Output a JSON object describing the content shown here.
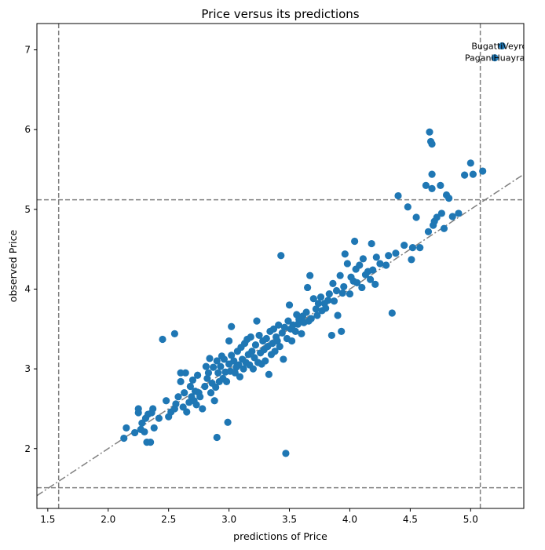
{
  "chart_data": {
    "type": "scatter",
    "title": "Price versus its predictions",
    "xlabel": "predictions of Price",
    "ylabel": "observed Price",
    "xlim": [
      1.41,
      5.44
    ],
    "ylim": [
      1.25,
      7.33
    ],
    "xticks": [
      "1.5",
      "2.0",
      "2.5",
      "3.0",
      "3.5",
      "4.0",
      "4.5",
      "5.0"
    ],
    "yticks": [
      "2",
      "3",
      "4",
      "5",
      "6",
      "7"
    ],
    "grid": false,
    "point_color": "#1f77b4",
    "line_color": "#808080",
    "identity_line": {
      "x": [
        1.41,
        5.44
      ],
      "y": [
        1.41,
        5.44
      ],
      "style": "dashdot"
    },
    "vlines": [
      1.59,
      5.08
    ],
    "hlines": [
      1.51,
      5.12
    ],
    "annotations": [
      {
        "text": "BugattiVeyron",
        "x": 5.26,
        "y": 7.05,
        "ha": "center"
      },
      {
        "text": "PaganiHuayra",
        "x": 5.2,
        "y": 6.9,
        "ha": "center"
      }
    ],
    "points": [
      [
        2.13,
        2.13
      ],
      [
        2.15,
        2.26
      ],
      [
        2.22,
        2.2
      ],
      [
        2.25,
        2.45
      ],
      [
        2.25,
        2.5
      ],
      [
        2.27,
        2.24
      ],
      [
        2.28,
        2.32
      ],
      [
        2.3,
        2.21
      ],
      [
        2.31,
        2.38
      ],
      [
        2.32,
        2.08
      ],
      [
        2.33,
        2.43
      ],
      [
        2.35,
        2.08
      ],
      [
        2.36,
        2.45
      ],
      [
        2.37,
        2.5
      ],
      [
        2.38,
        2.26
      ],
      [
        2.42,
        2.38
      ],
      [
        2.45,
        3.37
      ],
      [
        2.48,
        2.6
      ],
      [
        2.5,
        2.4
      ],
      [
        2.52,
        2.46
      ],
      [
        2.55,
        2.5
      ],
      [
        2.56,
        2.56
      ],
      [
        2.55,
        3.44
      ],
      [
        2.58,
        2.65
      ],
      [
        2.6,
        2.95
      ],
      [
        2.6,
        2.84
      ],
      [
        2.62,
        2.52
      ],
      [
        2.63,
        2.7
      ],
      [
        2.64,
        2.95
      ],
      [
        2.65,
        2.46
      ],
      [
        2.67,
        2.58
      ],
      [
        2.68,
        2.78
      ],
      [
        2.69,
        2.65
      ],
      [
        2.7,
        2.86
      ],
      [
        2.71,
        2.6
      ],
      [
        2.72,
        2.72
      ],
      [
        2.73,
        2.55
      ],
      [
        2.74,
        2.92
      ],
      [
        2.75,
        2.7
      ],
      [
        2.76,
        2.65
      ],
      [
        2.78,
        2.5
      ],
      [
        2.8,
        2.78
      ],
      [
        2.81,
        3.03
      ],
      [
        2.82,
        2.88
      ],
      [
        2.83,
        2.95
      ],
      [
        2.84,
        3.13
      ],
      [
        2.85,
        2.7
      ],
      [
        2.86,
        2.82
      ],
      [
        2.87,
        3.02
      ],
      [
        2.88,
        2.6
      ],
      [
        2.89,
        2.77
      ],
      [
        2.9,
        3.1
      ],
      [
        2.9,
        2.14
      ],
      [
        2.91,
        2.95
      ],
      [
        2.92,
        2.84
      ],
      [
        2.93,
        3.03
      ],
      [
        2.94,
        3.16
      ],
      [
        2.95,
        2.88
      ],
      [
        2.96,
        3.12
      ],
      [
        2.97,
        2.96
      ],
      [
        2.98,
        2.84
      ],
      [
        2.99,
        2.33
      ],
      [
        3.0,
        3.06
      ],
      [
        3.0,
        3.35
      ],
      [
        3.01,
        2.97
      ],
      [
        3.02,
        3.17
      ],
      [
        3.02,
        3.53
      ],
      [
        3.04,
        3.1
      ],
      [
        3.05,
        2.95
      ],
      [
        3.06,
        3.02
      ],
      [
        3.07,
        3.22
      ],
      [
        3.08,
        3.05
      ],
      [
        3.09,
        2.9
      ],
      [
        3.1,
        3.27
      ],
      [
        3.11,
        3.12
      ],
      [
        3.12,
        3.0
      ],
      [
        3.13,
        3.32
      ],
      [
        3.14,
        3.08
      ],
      [
        3.15,
        3.37
      ],
      [
        3.16,
        3.18
      ],
      [
        3.17,
        3.05
      ],
      [
        3.18,
        3.4
      ],
      [
        3.19,
        3.22
      ],
      [
        3.2,
        3.0
      ],
      [
        3.21,
        3.14
      ],
      [
        3.22,
        3.3
      ],
      [
        3.23,
        3.6
      ],
      [
        3.24,
        3.08
      ],
      [
        3.25,
        3.42
      ],
      [
        3.26,
        3.2
      ],
      [
        3.27,
        3.06
      ],
      [
        3.28,
        3.35
      ],
      [
        3.29,
        3.24
      ],
      [
        3.3,
        3.1
      ],
      [
        3.31,
        3.38
      ],
      [
        3.32,
        3.28
      ],
      [
        3.33,
        2.93
      ],
      [
        3.34,
        3.47
      ],
      [
        3.35,
        3.18
      ],
      [
        3.36,
        3.32
      ],
      [
        3.37,
        3.5
      ],
      [
        3.38,
        3.22
      ],
      [
        3.39,
        3.4
      ],
      [
        3.4,
        3.35
      ],
      [
        3.41,
        3.55
      ],
      [
        3.42,
        3.28
      ],
      [
        3.43,
        4.42
      ],
      [
        3.44,
        3.45
      ],
      [
        3.45,
        3.12
      ],
      [
        3.46,
        3.52
      ],
      [
        3.47,
        1.94
      ],
      [
        3.48,
        3.38
      ],
      [
        3.49,
        3.6
      ],
      [
        3.5,
        3.8
      ],
      [
        3.51,
        3.5
      ],
      [
        3.52,
        3.35
      ],
      [
        3.53,
        3.55
      ],
      [
        3.55,
        3.47
      ],
      [
        3.56,
        3.68
      ],
      [
        3.57,
        3.56
      ],
      [
        3.58,
        3.62
      ],
      [
        3.6,
        3.44
      ],
      [
        3.61,
        3.66
      ],
      [
        3.62,
        3.58
      ],
      [
        3.64,
        3.71
      ],
      [
        3.65,
        4.02
      ],
      [
        3.66,
        3.6
      ],
      [
        3.67,
        4.17
      ],
      [
        3.68,
        3.63
      ],
      [
        3.7,
        3.88
      ],
      [
        3.72,
        3.75
      ],
      [
        3.73,
        3.67
      ],
      [
        3.74,
        3.82
      ],
      [
        3.76,
        3.9
      ],
      [
        3.77,
        3.73
      ],
      [
        3.79,
        3.82
      ],
      [
        3.8,
        3.76
      ],
      [
        3.82,
        3.86
      ],
      [
        3.83,
        3.94
      ],
      [
        3.85,
        3.42
      ],
      [
        3.86,
        4.07
      ],
      [
        3.87,
        3.85
      ],
      [
        3.89,
        3.98
      ],
      [
        3.9,
        3.67
      ],
      [
        3.92,
        4.17
      ],
      [
        3.93,
        3.47
      ],
      [
        3.94,
        3.95
      ],
      [
        3.95,
        4.03
      ],
      [
        3.96,
        4.44
      ],
      [
        3.98,
        4.32
      ],
      [
        4.0,
        3.94
      ],
      [
        4.01,
        4.15
      ],
      [
        4.03,
        4.1
      ],
      [
        4.04,
        4.6
      ],
      [
        4.05,
        4.25
      ],
      [
        4.06,
        4.08
      ],
      [
        4.08,
        4.3
      ],
      [
        4.1,
        4.02
      ],
      [
        4.11,
        4.38
      ],
      [
        4.13,
        4.18
      ],
      [
        4.15,
        4.22
      ],
      [
        4.17,
        4.12
      ],
      [
        4.18,
        4.57
      ],
      [
        4.19,
        4.24
      ],
      [
        4.21,
        4.06
      ],
      [
        4.22,
        4.4
      ],
      [
        4.25,
        4.32
      ],
      [
        4.3,
        4.3
      ],
      [
        4.32,
        4.42
      ],
      [
        4.35,
        3.7
      ],
      [
        4.38,
        4.45
      ],
      [
        4.4,
        5.17
      ],
      [
        4.45,
        4.55
      ],
      [
        4.48,
        5.03
      ],
      [
        4.51,
        4.37
      ],
      [
        4.52,
        4.52
      ],
      [
        4.55,
        4.9
      ],
      [
        4.58,
        4.52
      ],
      [
        4.63,
        5.3
      ],
      [
        4.65,
        4.72
      ],
      [
        4.66,
        5.97
      ],
      [
        4.67,
        5.85
      ],
      [
        4.68,
        5.82
      ],
      [
        4.68,
        5.44
      ],
      [
        4.68,
        5.26
      ],
      [
        4.69,
        4.8
      ],
      [
        4.7,
        4.85
      ],
      [
        4.72,
        4.9
      ],
      [
        4.75,
        5.3
      ],
      [
        4.76,
        4.95
      ],
      [
        4.78,
        4.76
      ],
      [
        4.8,
        5.18
      ],
      [
        4.82,
        5.14
      ],
      [
        4.85,
        4.91
      ],
      [
        4.9,
        4.95
      ],
      [
        4.95,
        5.43
      ],
      [
        5.0,
        5.58
      ],
      [
        5.02,
        5.44
      ],
      [
        5.1,
        5.48
      ],
      [
        5.2,
        6.9
      ],
      [
        5.26,
        7.05
      ]
    ]
  }
}
